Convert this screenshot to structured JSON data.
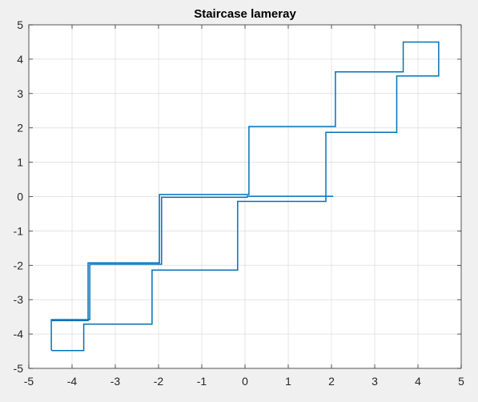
{
  "chart_data": {
    "type": "line",
    "title": "Staircase lameray",
    "xlabel": "",
    "ylabel": "",
    "xlim": [
      -5,
      5
    ],
    "ylim": [
      -5,
      5
    ],
    "xticks": [
      "-5",
      "-4",
      "-3",
      "-2",
      "-1",
      "0",
      "1",
      "2",
      "3",
      "4",
      "5"
    ],
    "yticks": [
      "-5",
      "-4",
      "-3",
      "-2",
      "-1",
      "0",
      "1",
      "2",
      "3",
      "4",
      "5"
    ],
    "grid": true,
    "box": true,
    "colors": {
      "line": "#0072BD",
      "grid": "#dcdcdc",
      "axes": "#262626",
      "plot_background": "#ffffff",
      "figure_background": "#f0f0f0"
    },
    "series": [
      {
        "x": [
          2.04,
          0.05,
          0.05,
          -1.93,
          -1.93,
          -3.59,
          -3.59,
          -4.48,
          -4.48,
          -4.46,
          -3.73,
          -3.73,
          -2.15,
          -2.15,
          -0.17,
          -0.17,
          1.87,
          1.87,
          3.51,
          3.51,
          4.48,
          4.48,
          3.66,
          3.66,
          2.09,
          2.09,
          0.09,
          0.09,
          -1.98,
          -1.98,
          -3.63,
          -3.63,
          -4.48,
          -4.48
        ],
        "y": [
          0.01,
          0.01,
          -0.02,
          -0.02,
          -1.97,
          -1.97,
          -3.58,
          -3.58,
          -4.46,
          -4.48,
          -4.48,
          -3.71,
          -3.71,
          -2.14,
          -2.14,
          -0.14,
          -0.14,
          1.87,
          1.87,
          3.51,
          3.51,
          4.5,
          4.5,
          3.63,
          3.63,
          2.04,
          2.04,
          0.06,
          0.06,
          -1.93,
          -1.93,
          -3.61,
          -3.61,
          -4.46
        ]
      }
    ]
  }
}
